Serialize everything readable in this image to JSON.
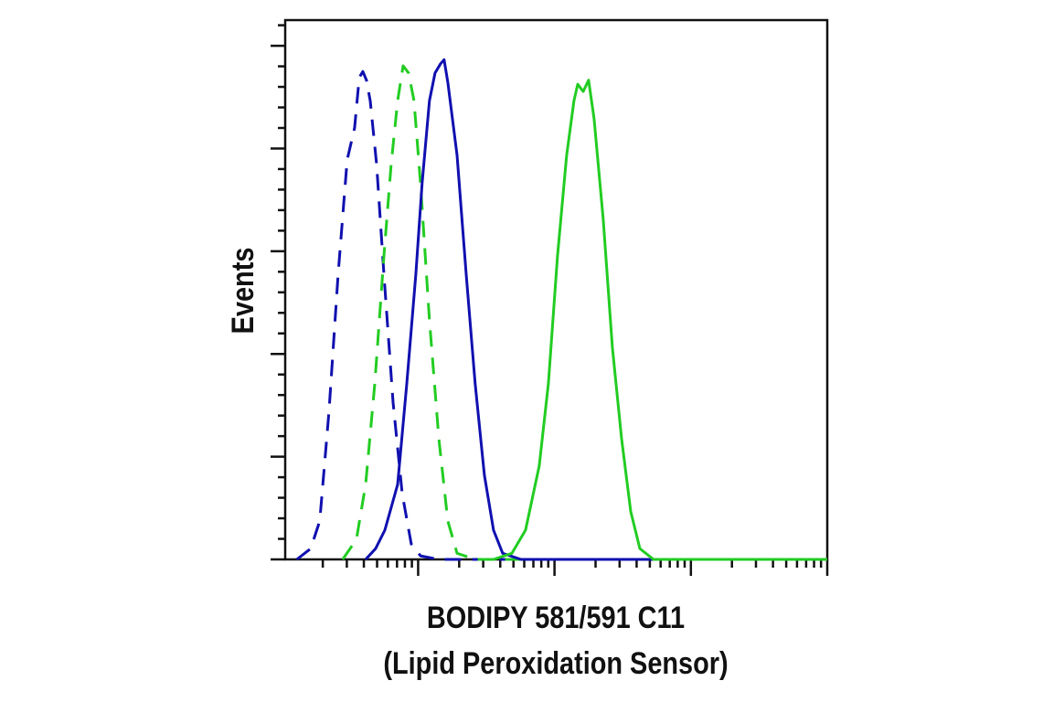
{
  "chart_data": {
    "type": "line",
    "ylabel": "Events",
    "xlabel": [
      "BODIPY 581/591 C11",
      "(Lipid Peroxidation Sensor)"
    ],
    "xscale": "log",
    "xlim": [
      10.6,
      100000
    ],
    "xticks": [
      100,
      1000,
      10000,
      100000
    ],
    "xminorticks": [
      20,
      30,
      40,
      50,
      60,
      70,
      80,
      90,
      200,
      300,
      400,
      500,
      600,
      700,
      800,
      900,
      2000,
      3000,
      4000,
      5000,
      6000,
      7000,
      8000,
      9000,
      20000,
      30000,
      40000,
      50000,
      60000,
      70000,
      80000,
      90000
    ],
    "ylim": [
      0,
      105
    ],
    "yticks": [
      0,
      20,
      40,
      60,
      80,
      100
    ],
    "yminorticks": [
      4,
      8,
      12,
      16,
      24,
      28,
      32,
      36,
      44,
      48,
      52,
      56,
      64,
      68,
      72,
      76,
      84,
      88,
      92,
      96,
      104
    ],
    "series": [
      {
        "color": "#1010b0",
        "dashed": true,
        "x": [
          12.9,
          16.3,
          19.0,
          22.2,
          25.9,
          30.2,
          34.2,
          37.0,
          39.3,
          41.8,
          44.5,
          49.6,
          56.1,
          65.5,
          76.4,
          89.1,
          104,
          142,
          100000
        ],
        "values": [
          0,
          2.1,
          7.5,
          28.8,
          55.5,
          77.8,
          84.0,
          93.8,
          95.0,
          93.3,
          89.3,
          76.9,
          55.5,
          30.6,
          12.8,
          3.0,
          0.7,
          0,
          0
        ]
      },
      {
        "color": "#22cc22",
        "dashed": true,
        "x": [
          28.0,
          35.3,
          41.2,
          48.1,
          56.1,
          63.4,
          70.7,
          77.6,
          85.1,
          93.3,
          104,
          121,
          142,
          165,
          193,
          262,
          100000
        ],
        "values": [
          0,
          3.9,
          14.6,
          34.2,
          59.1,
          76.9,
          89.3,
          96.1,
          94.7,
          89.3,
          73.3,
          46.6,
          23.5,
          7.5,
          1.2,
          0,
          0
        ]
      },
      {
        "color": "#1010b0",
        "dashed": false,
        "x": [
          41.2,
          48.8,
          57.0,
          70.7,
          82.5,
          96.2,
          107,
          121,
          133,
          146,
          155,
          165,
          193,
          225,
          262,
          306,
          357,
          417,
          568,
          100000
        ],
        "values": [
          0,
          2.1,
          5.7,
          14.6,
          34.2,
          55.5,
          73.3,
          89.3,
          94.7,
          96.5,
          97.3,
          92.9,
          78.7,
          55.5,
          34.2,
          16.4,
          5.7,
          1.2,
          0,
          0
        ]
      },
      {
        "color": "#22cc22",
        "dashed": false,
        "x": [
          357,
          487,
          613,
          773,
          902,
          1052,
          1228,
          1390,
          1479,
          1622,
          1778,
          1951,
          2277,
          2656,
          3102,
          3622,
          4227,
          5321,
          100000
        ],
        "values": [
          0,
          1.2,
          5.7,
          18.2,
          34.2,
          59.1,
          78.7,
          89.3,
          92.5,
          91.1,
          93.3,
          85.8,
          66.2,
          41.3,
          23.5,
          9.3,
          2.1,
          0,
          0
        ]
      }
    ]
  }
}
